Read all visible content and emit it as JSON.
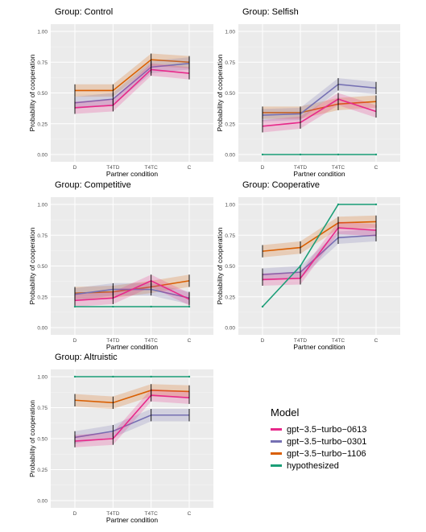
{
  "chart_data": {
    "type": "line",
    "categories": [
      "D",
      "T4TD",
      "T4TC",
      "C"
    ],
    "ylim": [
      0,
      1
    ],
    "yticks": [
      "0.00",
      "0.25",
      "0.50",
      "0.75",
      "1.00"
    ],
    "xlabel": "Partner condition",
    "ylabel": "Probability of cooperation",
    "grid": true,
    "legend": {
      "title": "Model",
      "placement": "bottom-right",
      "entries": [
        "gpt−3.5−turbo−0613",
        "gpt−3.5−turbo−0301",
        "gpt−3.5−turbo−1106",
        "hypothesized"
      ]
    },
    "series_colors": {
      "gpt-3.5-turbo-0613": "#e7298a",
      "gpt-3.5-turbo-0301": "#7570b3",
      "gpt-3.5-turbo-1106": "#d95f02",
      "hypothesized": "#1b9e77"
    },
    "panels": [
      {
        "title": "Group: Control",
        "series": [
          {
            "name": "gpt-3.5-turbo-0613",
            "values": [
              0.38,
              0.4,
              0.69,
              0.66
            ]
          },
          {
            "name": "gpt-3.5-turbo-0301",
            "values": [
              0.42,
              0.45,
              0.71,
              0.74
            ]
          },
          {
            "name": "gpt-3.5-turbo-1106",
            "values": [
              0.52,
              0.52,
              0.77,
              0.75
            ]
          }
        ]
      },
      {
        "title": "Group: Selfish",
        "series": [
          {
            "name": "gpt-3.5-turbo-0613",
            "values": [
              0.23,
              0.26,
              0.45,
              0.35
            ]
          },
          {
            "name": "gpt-3.5-turbo-0301",
            "values": [
              0.32,
              0.33,
              0.57,
              0.54
            ]
          },
          {
            "name": "gpt-3.5-turbo-1106",
            "values": [
              0.34,
              0.34,
              0.41,
              0.43
            ]
          },
          {
            "name": "hypothesized",
            "values": [
              0.0,
              0.0,
              0.0,
              0.0
            ]
          }
        ]
      },
      {
        "title": "Group: Competitive",
        "series": [
          {
            "name": "gpt-3.5-turbo-0613",
            "values": [
              0.22,
              0.24,
              0.38,
              0.23
            ]
          },
          {
            "name": "gpt-3.5-turbo-0301",
            "values": [
              0.27,
              0.31,
              0.31,
              0.24
            ]
          },
          {
            "name": "gpt-3.5-turbo-1106",
            "values": [
              0.28,
              0.29,
              0.33,
              0.38
            ]
          },
          {
            "name": "hypothesized",
            "values": [
              0.17,
              0.17,
              0.17,
              0.17
            ]
          }
        ]
      },
      {
        "title": "Group: Cooperative",
        "series": [
          {
            "name": "gpt-3.5-turbo-0613",
            "values": [
              0.39,
              0.4,
              0.81,
              0.79
            ]
          },
          {
            "name": "gpt-3.5-turbo-0301",
            "values": [
              0.43,
              0.45,
              0.73,
              0.75
            ]
          },
          {
            "name": "gpt-3.5-turbo-1106",
            "values": [
              0.62,
              0.65,
              0.85,
              0.86
            ]
          },
          {
            "name": "hypothesized",
            "values": [
              0.17,
              0.5,
              1.0,
              1.0
            ]
          }
        ]
      },
      {
        "title": "Group: Altruistic",
        "series": [
          {
            "name": "gpt-3.5-turbo-0613",
            "values": [
              0.48,
              0.5,
              0.85,
              0.83
            ]
          },
          {
            "name": "gpt-3.5-turbo-0301",
            "values": [
              0.51,
              0.56,
              0.69,
              0.69
            ]
          },
          {
            "name": "gpt-3.5-turbo-1106",
            "values": [
              0.81,
              0.79,
              0.89,
              0.88
            ]
          },
          {
            "name": "hypothesized",
            "values": [
              1.0,
              1.0,
              1.0,
              1.0
            ]
          }
        ]
      }
    ]
  }
}
